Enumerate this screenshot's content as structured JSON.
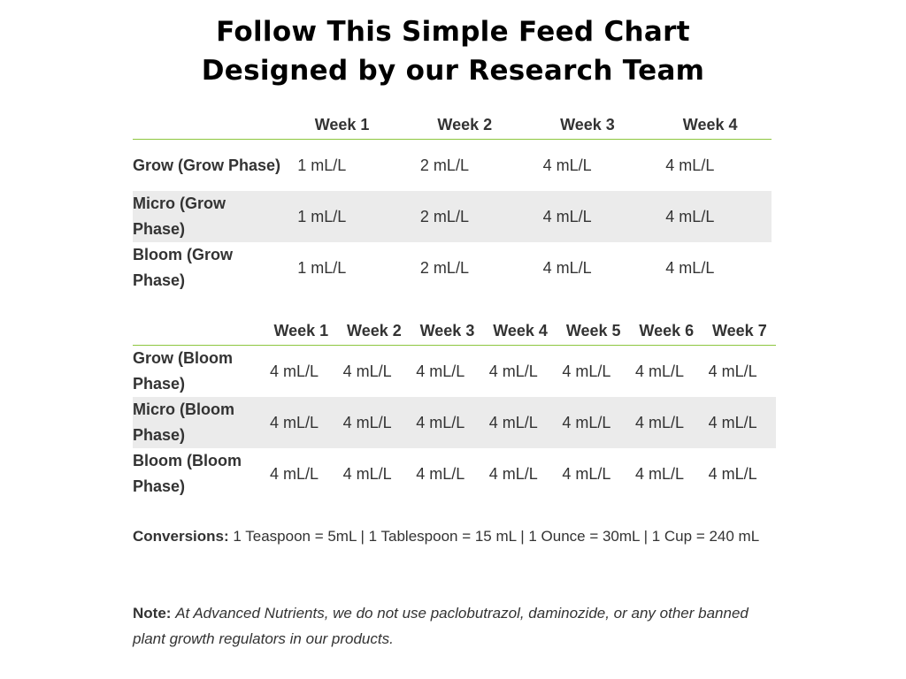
{
  "title": {
    "line1": "Follow This Simple Feed Chart",
    "line2": "Designed by our Research Team"
  },
  "grow_table": {
    "headers": [
      "",
      "Week 1",
      "Week 2",
      "Week 3",
      "Week 4"
    ],
    "rows": [
      {
        "label": "Grow (Grow Phase)",
        "values": [
          "1 mL/L",
          "2 mL/L",
          "4 mL/L",
          "4 mL/L"
        ]
      },
      {
        "label": "Micro (Grow Phase)",
        "values": [
          "1 mL/L",
          "2 mL/L",
          "4 mL/L",
          "4 mL/L"
        ]
      },
      {
        "label": "Bloom (Grow Phase)",
        "values": [
          "1 mL/L",
          "2 mL/L",
          "4 mL/L",
          "4 mL/L"
        ]
      }
    ]
  },
  "bloom_table": {
    "headers": [
      "",
      "Week 1",
      "Week 2",
      "Week 3",
      "Week 4",
      "Week 5",
      "Week 6",
      "Week 7"
    ],
    "rows": [
      {
        "label": "Grow (Bloom Phase)",
        "values": [
          "4 mL/L",
          "4 mL/L",
          "4 mL/L",
          "4 mL/L",
          "4 mL/L",
          "4 mL/L",
          "4 mL/L"
        ]
      },
      {
        "label": "Micro (Bloom Phase)",
        "values": [
          "4 mL/L",
          "4 mL/L",
          "4 mL/L",
          "4 mL/L",
          "4 mL/L",
          "4 mL/L",
          "4 mL/L"
        ]
      },
      {
        "label": "Bloom (Bloom Phase)",
        "values": [
          "4 mL/L",
          "4 mL/L",
          "4 mL/L",
          "4 mL/L",
          "4 mL/L",
          "4 mL/L",
          "4 mL/L"
        ]
      }
    ]
  },
  "conversions": {
    "label": "Conversions:",
    "text": "1 Teaspoon = 5mL  |  1 Tablespoon = 15 mL  |  1 Ounce = 30mL  |  1 Cup = 240 mL"
  },
  "note": {
    "label": "Note:",
    "text": "At Advanced Nutrients, we do not use paclobutrazol, daminozide, or any other banned plant growth regulators in our products."
  },
  "colors": {
    "header_rule": "#8dc63f",
    "row_shade": "#ebebeb",
    "text": "#333333"
  }
}
